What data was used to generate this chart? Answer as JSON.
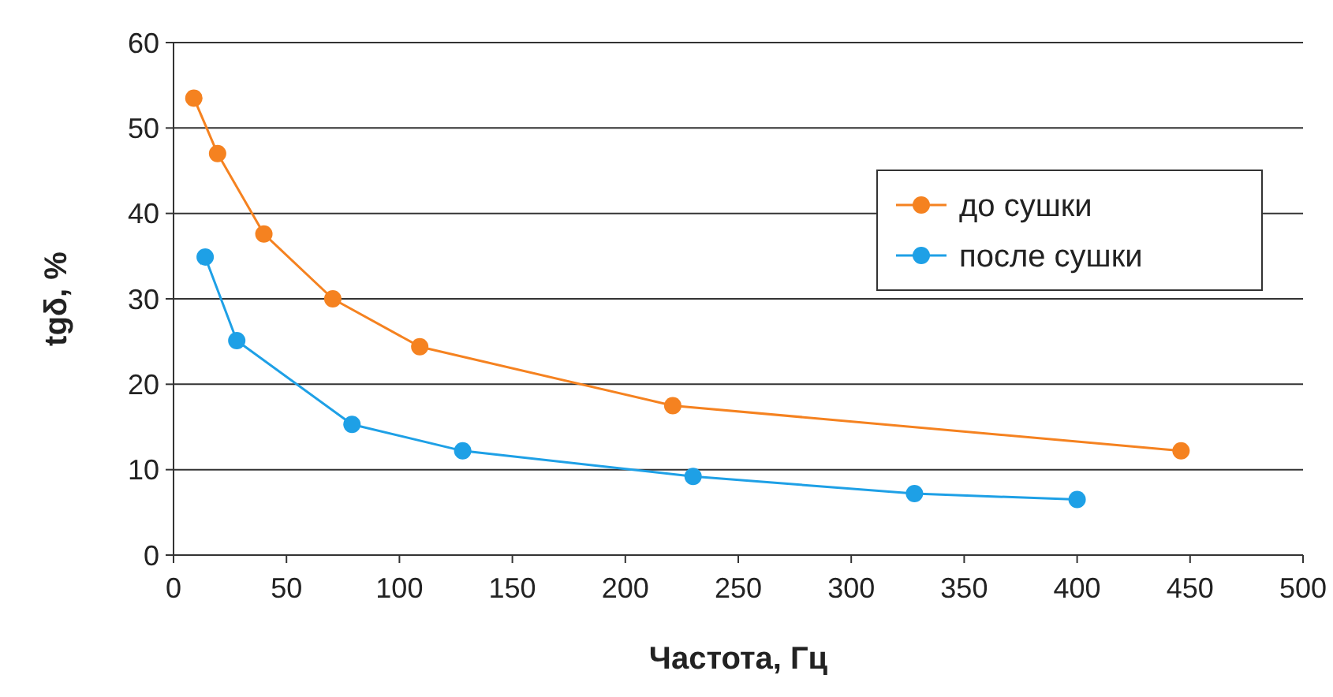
{
  "chart_data": {
    "type": "line",
    "xlabel": "Частота, Гц",
    "ylabel": "tgδ, %",
    "xlim": [
      0,
      500
    ],
    "xticks": [
      0,
      50,
      100,
      150,
      200,
      250,
      300,
      350,
      400,
      450,
      500
    ],
    "ylim": [
      0,
      60
    ],
    "yticks": [
      0,
      10,
      20,
      30,
      40,
      50,
      60
    ],
    "grid": "y",
    "legend": "top right",
    "marker": "circle",
    "line_style": "solid",
    "series": [
      {
        "name": "до сушки",
        "color": "#f58220",
        "x": [
          9,
          19.5,
          40,
          70.5,
          109,
          221,
          446
        ],
        "values": [
          53.5,
          47,
          37.6,
          30,
          24.4,
          17.5,
          12.2
        ]
      },
      {
        "name": "после сушки",
        "color": "#1ea0e6",
        "x": [
          14,
          28,
          79,
          128,
          230,
          328,
          400
        ],
        "values": [
          34.9,
          25.1,
          15.3,
          12.2,
          9.2,
          7.2,
          6.5
        ]
      }
    ]
  }
}
